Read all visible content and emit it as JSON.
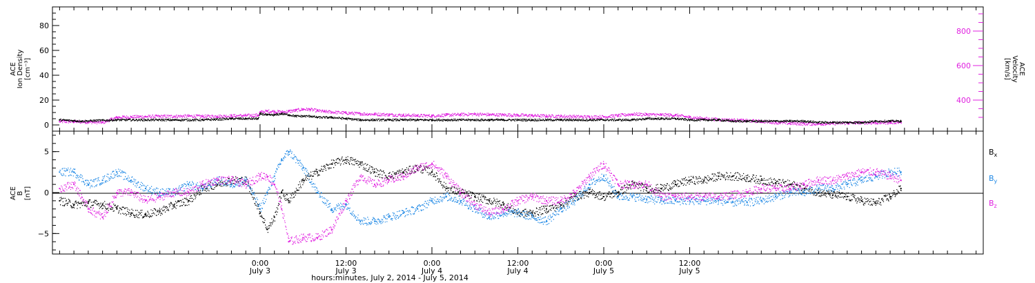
{
  "chart_data": [
    {
      "type": "scatter",
      "panel": "top",
      "ylabel_lines": [
        "ACE",
        "Ion Density",
        "[cm⁻³]"
      ],
      "ylabel_right_lines": [
        "ACE",
        "Velocity",
        "[km/s]"
      ],
      "ylim": [
        -5,
        95
      ],
      "ylim_right": [
        220,
        940
      ],
      "yticks": [
        0,
        20,
        40,
        60,
        80
      ],
      "yticks_right": [
        400,
        600,
        800
      ],
      "colors": {
        "density": "#000000",
        "velocity": "#e020e0"
      },
      "series": [
        {
          "axis": "left",
          "x": [
            -28,
            -25,
            -20,
            -16,
            -12,
            -8,
            -4,
            -2,
            -0.3,
            0,
            1,
            2,
            3,
            4,
            5,
            6,
            7,
            8,
            10,
            12,
            14,
            16,
            18,
            20,
            22,
            24,
            26,
            28,
            30,
            32,
            34,
            36,
            38,
            40,
            42,
            44,
            46,
            48,
            50,
            52,
            54,
            56,
            58,
            60,
            62,
            64,
            66,
            68,
            70,
            72,
            74,
            76,
            78,
            80,
            82,
            84,
            86,
            88,
            89.5
          ],
          "values": [
            4,
            3,
            4,
            4,
            4,
            4,
            5,
            5,
            5,
            9,
            8,
            8,
            9,
            8,
            7,
            7,
            7,
            6,
            6,
            5,
            4,
            4,
            4,
            4,
            4,
            4,
            4,
            4,
            4,
            4,
            4,
            4,
            4,
            4,
            4,
            4,
            4,
            4,
            4,
            4,
            5,
            5,
            5,
            4,
            4,
            4,
            3,
            3,
            3,
            3,
            3,
            3,
            2,
            2,
            2,
            2,
            3,
            3,
            3
          ]
        },
        {
          "axis": "right",
          "x": [
            -28,
            -26,
            -24,
            -22,
            -20,
            -18,
            -16,
            -14,
            -12,
            -10,
            -8,
            -6,
            -4,
            -2,
            -0.3,
            0,
            1,
            2,
            3,
            4,
            5,
            6,
            7,
            8,
            9,
            10,
            12,
            14,
            16,
            18,
            20,
            22,
            24,
            26,
            28,
            30,
            32,
            34,
            36,
            38,
            40,
            42,
            44,
            46,
            48,
            50,
            52,
            54,
            56,
            58,
            60,
            62,
            64,
            66,
            68,
            70,
            72,
            74,
            76,
            78,
            80,
            82,
            84,
            86,
            88,
            89.5
          ],
          "values": [
            275,
            275,
            272,
            270,
            300,
            302,
            304,
            305,
            306,
            307,
            305,
            306,
            308,
            310,
            312,
            330,
            335,
            333,
            330,
            335,
            340,
            347,
            345,
            338,
            333,
            330,
            325,
            320,
            318,
            315,
            312,
            310,
            308,
            313,
            316,
            318,
            315,
            314,
            312,
            310,
            307,
            306,
            304,
            302,
            303,
            310,
            318,
            316,
            314,
            312,
            300,
            292,
            287,
            284,
            280,
            276,
            270,
            265,
            262,
            262,
            264,
            266,
            268,
            268,
            270,
            272
          ]
        }
      ]
    },
    {
      "type": "scatter",
      "panel": "bottom",
      "ylabel_lines": [
        "ACE",
        "B",
        "[nT]"
      ],
      "ylim": [
        -7.5,
        7.5
      ],
      "yticks": [
        -5,
        0,
        5
      ],
      "colors": {
        "Bx": "#000000",
        "By": "#1e88e5",
        "Bz": "#e020e0"
      },
      "series": [
        {
          "name": "Bx",
          "x": [
            -28,
            -26,
            -24,
            -22,
            -20,
            -18,
            -16,
            -14,
            -12,
            -10,
            -8,
            -6,
            -4,
            -2,
            0,
            1,
            2,
            3,
            4,
            6,
            8,
            10,
            12,
            14,
            16,
            18,
            20,
            22,
            24,
            26,
            28,
            30,
            32,
            34,
            36,
            38,
            40,
            42,
            44,
            46,
            48,
            50,
            52,
            54,
            56,
            58,
            60,
            62,
            64,
            66,
            68,
            70,
            72,
            74,
            76,
            78,
            80,
            82,
            84,
            86,
            88,
            89.5
          ],
          "values": [
            -1,
            -1.5,
            -1.3,
            -1.5,
            -2,
            -2.5,
            -2.7,
            -2.3,
            -1.5,
            -1,
            0.5,
            1,
            1.5,
            1.5,
            -2.5,
            -4.5,
            -3,
            0,
            -1,
            1.5,
            2.5,
            3.5,
            4,
            3.5,
            2.5,
            2,
            2.5,
            3,
            2.5,
            0.5,
            0,
            -0.5,
            -1,
            -1.5,
            -2.5,
            -2.5,
            -2,
            -1.5,
            -0.5,
            0,
            -0.5,
            0,
            1,
            0.5,
            0.5,
            1,
            1.5,
            1.5,
            2,
            2,
            1.8,
            1.5,
            1.2,
            1,
            0.5,
            0,
            -0.3,
            -0.5,
            -1,
            -1.3,
            -0.5,
            0.5
          ]
        },
        {
          "name": "By",
          "x": [
            -28,
            -26,
            -24,
            -22,
            -20,
            -18,
            -16,
            -14,
            -12,
            -10,
            -8,
            -6,
            -4,
            -2,
            0,
            1,
            2,
            3,
            4,
            6,
            8,
            10,
            12,
            14,
            16,
            18,
            20,
            22,
            24,
            26,
            28,
            30,
            32,
            34,
            36,
            38,
            40,
            42,
            44,
            46,
            48,
            50,
            52,
            54,
            56,
            58,
            60,
            62,
            64,
            66,
            68,
            70,
            72,
            74,
            76,
            78,
            80,
            82,
            84,
            86,
            88,
            89.5
          ],
          "values": [
            2.5,
            2.5,
            1,
            1.5,
            2.5,
            1.5,
            0.5,
            0,
            0,
            1,
            0.5,
            1.5,
            1,
            1.5,
            -2,
            0,
            2,
            4,
            5,
            3,
            0,
            -2,
            -1.5,
            -3.5,
            -3.5,
            -3,
            -2.5,
            -2,
            -1,
            -0.5,
            -1,
            -2,
            -3,
            -2.5,
            -2.5,
            -3,
            -3.5,
            -2,
            -1,
            1,
            2,
            -0.5,
            -0.5,
            -0.8,
            -1,
            -1,
            -1,
            -1,
            -1,
            -1.2,
            -1.2,
            -1,
            -0.5,
            0,
            0,
            0.5,
            0.5,
            1,
            1.5,
            2,
            2.5,
            2.5
          ]
        },
        {
          "name": "Bz",
          "x": [
            -28,
            -26,
            -24,
            -22,
            -20,
            -18,
            -16,
            -14,
            -12,
            -10,
            -8,
            -6,
            -4,
            -2,
            0,
            1,
            2,
            3,
            4,
            6,
            8,
            10,
            12,
            14,
            16,
            18,
            20,
            22,
            24,
            26,
            28,
            30,
            32,
            34,
            36,
            38,
            40,
            42,
            44,
            46,
            48,
            50,
            52,
            54,
            56,
            58,
            60,
            62,
            64,
            66,
            68,
            70,
            72,
            74,
            76,
            78,
            80,
            82,
            84,
            86,
            88,
            89.5
          ],
          "values": [
            0.5,
            1,
            -2,
            -3,
            0,
            0,
            -1,
            -0.5,
            0,
            0,
            1,
            1.5,
            1.5,
            1,
            2,
            2,
            1,
            -2,
            -6,
            -5.5,
            -5.5,
            -4.5,
            -1,
            2,
            1,
            1.5,
            2,
            3,
            3.5,
            2,
            0,
            -1.5,
            -2.5,
            -2,
            -1,
            -0.5,
            -1,
            -1,
            0,
            2,
            3.5,
            1,
            1,
            1,
            -0.5,
            -0.5,
            -0.5,
            -0.5,
            -0.5,
            -0.3,
            0,
            0.5,
            0.5,
            0.5,
            1,
            1.5,
            1.5,
            2,
            2.5,
            2.5,
            2,
            1.5
          ]
        }
      ],
      "legend": [
        "Bx",
        "By",
        "Bz"
      ],
      "legend_sub": [
        "x",
        "y",
        "z"
      ],
      "legend_placement": "right"
    }
  ],
  "x_axis": {
    "xlim": [
      -29,
      101
    ],
    "major_ticks": [
      0,
      12,
      24,
      36,
      48,
      60
    ],
    "minor_tick_step": 2,
    "tick_times": [
      "0:00",
      "12:00",
      "0:00",
      "12:00",
      "0:00",
      "12:00"
    ],
    "tick_dates": [
      "July 3",
      "July 3",
      "July 4",
      "July 4",
      "July 5",
      "July 5"
    ],
    "xlabel": "hours:minutes, July  2, 2014 - July  5, 2014"
  }
}
